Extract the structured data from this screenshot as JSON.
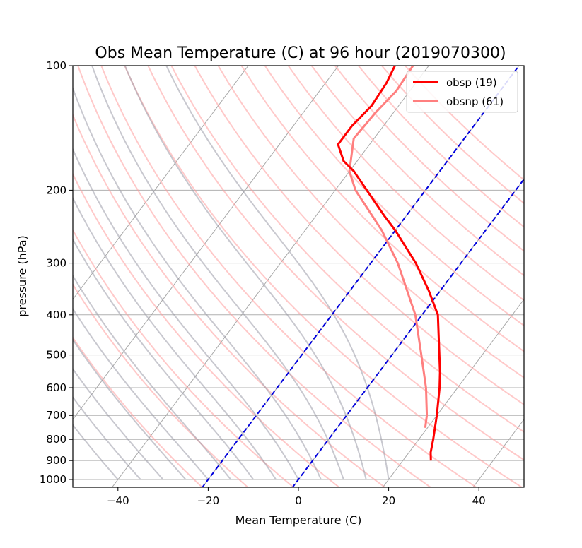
{
  "chart_data": {
    "type": "line",
    "title": "Obs Mean Temperature (C) at 96 hour (2019070300)",
    "xlabel": "Mean Temperature (C)",
    "ylabel": "pressure (hPa)",
    "xlim": [
      -50,
      50
    ],
    "ylim_pressure": [
      1050,
      100
    ],
    "y_scale": "log",
    "skew_t": true,
    "x_ticks": [
      -40,
      -20,
      0,
      20,
      40
    ],
    "x_tick_labels": [
      "−40",
      "−20",
      "0",
      "20",
      "40"
    ],
    "y_ticks": [
      1000,
      900,
      800,
      700,
      600,
      500,
      400,
      300,
      200,
      100
    ],
    "y_tick_labels": [
      "1000",
      "900",
      "800",
      "700",
      "600",
      "500",
      "400",
      "300",
      "200",
      "100"
    ],
    "grid": true,
    "legend_position": "upper-right",
    "background_lines": {
      "isotherms": [
        -80,
        -60,
        -40,
        -20,
        0,
        20,
        40,
        60
      ],
      "dry_adiabats_theta_k": [
        250,
        260,
        270,
        280,
        290,
        300,
        310,
        320,
        330,
        340,
        350,
        360,
        370,
        380,
        390,
        400,
        410,
        420,
        430,
        440
      ],
      "moist_adiabats_start_t": [
        -40,
        -35,
        -30,
        -25,
        -20,
        -15,
        -10,
        -5,
        0,
        5,
        10,
        15,
        20
      ],
      "mixing_ratio_dashed_start_t": [
        -20,
        0
      ]
    },
    "series": [
      {
        "name": "obsp (19)",
        "color": "#ff0000",
        "points": [
          {
            "p": 900,
            "t": 26.2
          },
          {
            "p": 860,
            "t": 24.8
          },
          {
            "p": 800,
            "t": 23.2
          },
          {
            "p": 700,
            "t": 20.0
          },
          {
            "p": 600,
            "t": 16.0
          },
          {
            "p": 550,
            "t": 13.5
          },
          {
            "p": 500,
            "t": 10.5
          },
          {
            "p": 400,
            "t": 3.5
          },
          {
            "p": 350,
            "t": -2.5
          },
          {
            "p": 300,
            "t": -10.0
          },
          {
            "p": 250,
            "t": -20.0
          },
          {
            "p": 230,
            "t": -25.0
          },
          {
            "p": 200,
            "t": -33.0
          },
          {
            "p": 180,
            "t": -39.0
          },
          {
            "p": 170,
            "t": -43.0
          },
          {
            "p": 155,
            "t": -47.0
          },
          {
            "p": 140,
            "t": -47.0
          },
          {
            "p": 125,
            "t": -46.0
          },
          {
            "p": 110,
            "t": -46.5
          },
          {
            "p": 100,
            "t": -47.5
          }
        ]
      },
      {
        "name": "obsnp (61)",
        "color": "#ff7f7f",
        "points": [
          {
            "p": 750,
            "t": 19.5
          },
          {
            "p": 700,
            "t": 17.8
          },
          {
            "p": 600,
            "t": 13.0
          },
          {
            "p": 500,
            "t": 6.5
          },
          {
            "p": 400,
            "t": -1.5
          },
          {
            "p": 300,
            "t": -14.0
          },
          {
            "p": 250,
            "t": -23.0
          },
          {
            "p": 200,
            "t": -35.5
          },
          {
            "p": 180,
            "t": -40.0
          },
          {
            "p": 150,
            "t": -44.5
          },
          {
            "p": 130,
            "t": -44.0
          },
          {
            "p": 115,
            "t": -43.0
          },
          {
            "p": 100,
            "t": -43.5
          }
        ]
      }
    ]
  }
}
